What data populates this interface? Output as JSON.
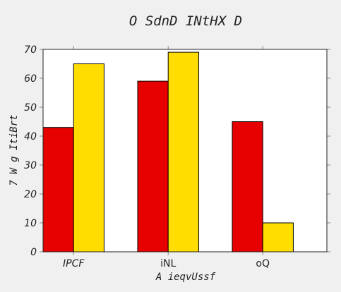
{
  "chart_data": {
    "type": "bar",
    "title": "O SdnD INtHX D",
    "xlabel": "A ieqvUssf",
    "ylabel": "7 W g ItiBrt",
    "categories": [
      "IPCF",
      "iNL",
      "oQ"
    ],
    "series": [
      {
        "values": [
          43,
          59,
          45
        ],
        "color": "#e60000"
      },
      {
        "values": [
          65,
          69,
          10
        ],
        "color": "#ffdd00"
      }
    ],
    "ylim": [
      0,
      70
    ],
    "yticks": [
      0,
      10,
      20,
      30,
      40,
      50,
      60,
      70
    ],
    "grid": false,
    "legend": "none"
  }
}
